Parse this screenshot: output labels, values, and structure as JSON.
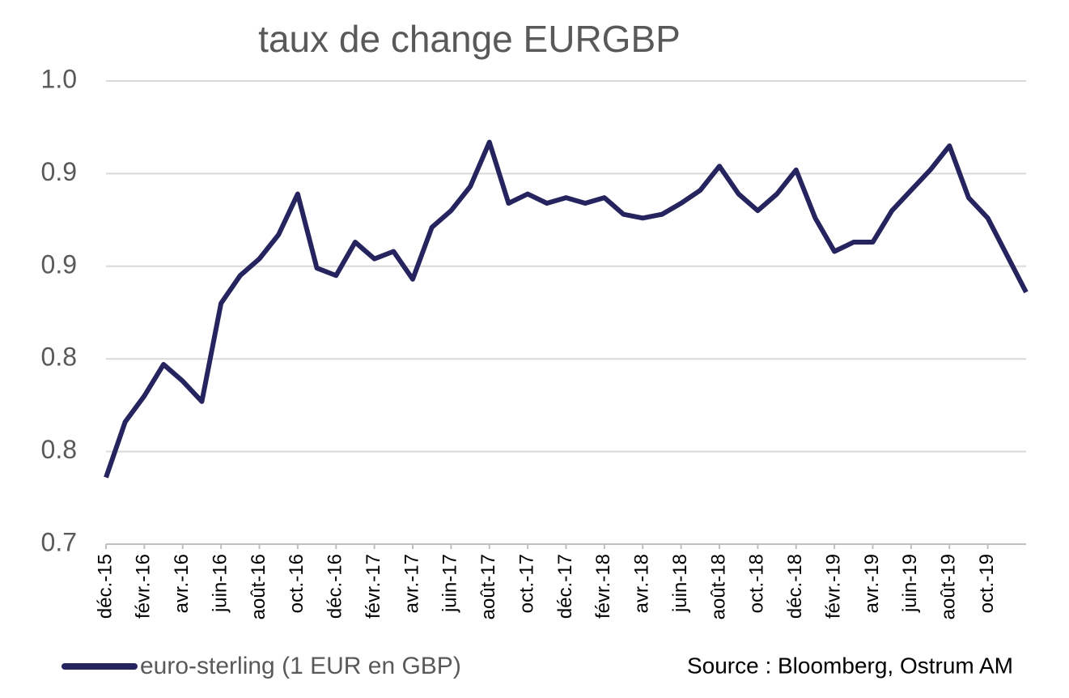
{
  "chart_data": {
    "type": "line",
    "title": "taux de change EURGBP",
    "source": "Source : Bloomberg, Ostrum AM",
    "x": [
      "2015-12",
      "2016-01",
      "2016-02",
      "2016-03",
      "2016-04",
      "2016-05",
      "2016-06",
      "2016-07",
      "2016-08",
      "2016-09",
      "2016-10",
      "2016-11",
      "2016-12",
      "2017-01",
      "2017-02",
      "2017-03",
      "2017-04",
      "2017-05",
      "2017-06",
      "2017-07",
      "2017-08",
      "2017-09",
      "2017-10",
      "2017-11",
      "2017-12",
      "2018-01",
      "2018-02",
      "2018-03",
      "2018-04",
      "2018-05",
      "2018-06",
      "2018-07",
      "2018-08",
      "2018-09",
      "2018-10",
      "2018-11",
      "2018-12",
      "2019-01",
      "2019-02",
      "2019-03",
      "2019-04",
      "2019-05",
      "2019-06",
      "2019-07",
      "2019-08",
      "2019-09",
      "2019-10",
      "2019-11",
      "2019-12"
    ],
    "series": [
      {
        "name": "euro-sterling (1 EUR en GBP)",
        "color": "#25245e",
        "values": [
          0.736,
          0.766,
          0.78,
          0.797,
          0.788,
          0.777,
          0.83,
          0.845,
          0.854,
          0.867,
          0.889,
          0.849,
          0.845,
          0.863,
          0.854,
          0.858,
          0.843,
          0.871,
          0.88,
          0.893,
          0.917,
          0.884,
          0.889,
          0.884,
          0.887,
          0.884,
          0.887,
          0.878,
          0.876,
          0.878,
          0.884,
          0.891,
          0.904,
          0.889,
          0.88,
          0.889,
          0.902,
          0.876,
          0.858,
          0.863,
          0.863,
          0.88,
          0.891,
          0.902,
          0.915,
          0.887,
          0.876,
          0.856,
          0.836
        ]
      }
    ],
    "xlim": [
      "2015-12",
      "2019-12"
    ],
    "xticks": [
      {
        "value": "2015-12",
        "label": "déc.-15"
      },
      {
        "value": "2016-02",
        "label": "févr.-16"
      },
      {
        "value": "2016-04",
        "label": "avr.-16"
      },
      {
        "value": "2016-06",
        "label": "juin-16"
      },
      {
        "value": "2016-08",
        "label": "août-16"
      },
      {
        "value": "2016-10",
        "label": "oct.-16"
      },
      {
        "value": "2016-12",
        "label": "déc.-16"
      },
      {
        "value": "2017-02",
        "label": "févr.-17"
      },
      {
        "value": "2017-04",
        "label": "avr.-17"
      },
      {
        "value": "2017-06",
        "label": "juin-17"
      },
      {
        "value": "2017-08",
        "label": "août-17"
      },
      {
        "value": "2017-10",
        "label": "oct.-17"
      },
      {
        "value": "2017-12",
        "label": "déc.-17"
      },
      {
        "value": "2018-02",
        "label": "févr.-18"
      },
      {
        "value": "2018-04",
        "label": "avr.-18"
      },
      {
        "value": "2018-06",
        "label": "juin-18"
      },
      {
        "value": "2018-08",
        "label": "août-18"
      },
      {
        "value": "2018-10",
        "label": "oct.-18"
      },
      {
        "value": "2018-12",
        "label": "déc.-18"
      },
      {
        "value": "2019-02",
        "label": "févr.-19"
      },
      {
        "value": "2019-04",
        "label": "avr.-19"
      },
      {
        "value": "2019-06",
        "label": "juin-19"
      },
      {
        "value": "2019-08",
        "label": "août-19"
      },
      {
        "value": "2019-10",
        "label": "oct.-19"
      }
    ],
    "ylim": [
      0.7,
      0.95
    ],
    "yticks": [
      {
        "value": 0.7,
        "label": "0.7"
      },
      {
        "value": 0.75,
        "label": "0.8"
      },
      {
        "value": 0.8,
        "label": "0.8"
      },
      {
        "value": 0.85,
        "label": "0.9"
      },
      {
        "value": 0.9,
        "label": "0.9"
      },
      {
        "value": 0.95,
        "label": "1.0"
      }
    ],
    "grid": true
  }
}
